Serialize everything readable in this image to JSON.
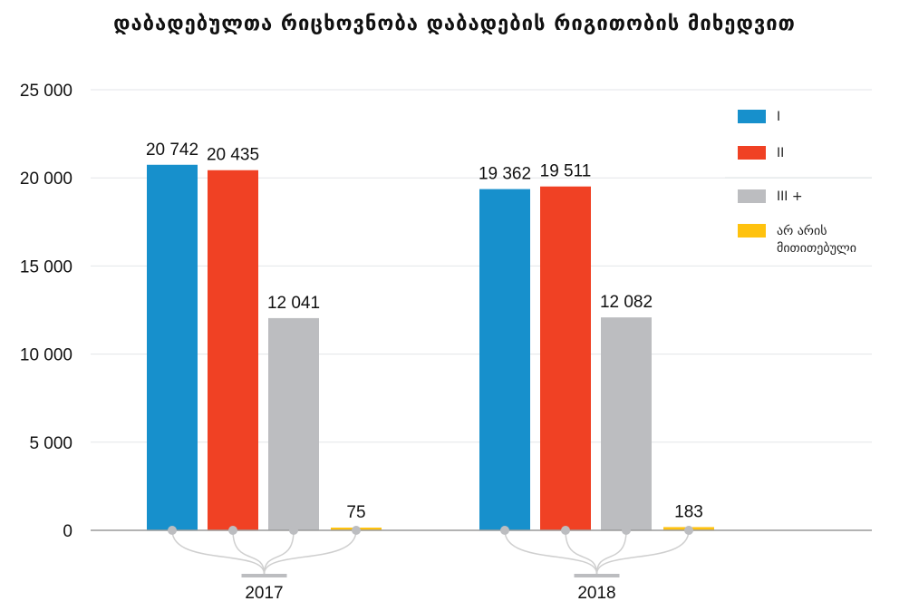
{
  "chart_data": {
    "type": "bar",
    "title": "დაბადებულთა რიცხოვნობა დაბადების რიგითობის მიხედვით",
    "categories": [
      "2017",
      "2018"
    ],
    "series": [
      {
        "name": "I",
        "color": "#1790cc",
        "values": [
          20742,
          19362
        ],
        "labels": [
          "20 742",
          "19 362"
        ]
      },
      {
        "name": "II",
        "color": "#f04124",
        "values": [
          20435,
          19511
        ],
        "labels": [
          "20 435",
          "19 511"
        ]
      },
      {
        "name": "III +",
        "color": "#bcbdc0",
        "values": [
          12041,
          12082
        ],
        "labels": [
          "12 041",
          "12 082"
        ]
      },
      {
        "name": "არ არის მითითებული",
        "legend_lines": [
          "არ არის",
          "მითითებული"
        ],
        "color": "#ffc20e",
        "values": [
          75,
          183
        ],
        "labels": [
          "75",
          "183"
        ]
      }
    ],
    "ylim": [
      0,
      25000
    ],
    "yticks": [
      0,
      5000,
      10000,
      15000,
      20000,
      25000
    ],
    "ytick_labels": [
      "0",
      "5 000",
      "10 000",
      "15 000",
      "20 000",
      "25 000"
    ],
    "grid": true,
    "legend_position": "right",
    "xlabel": "",
    "ylabel": ""
  }
}
